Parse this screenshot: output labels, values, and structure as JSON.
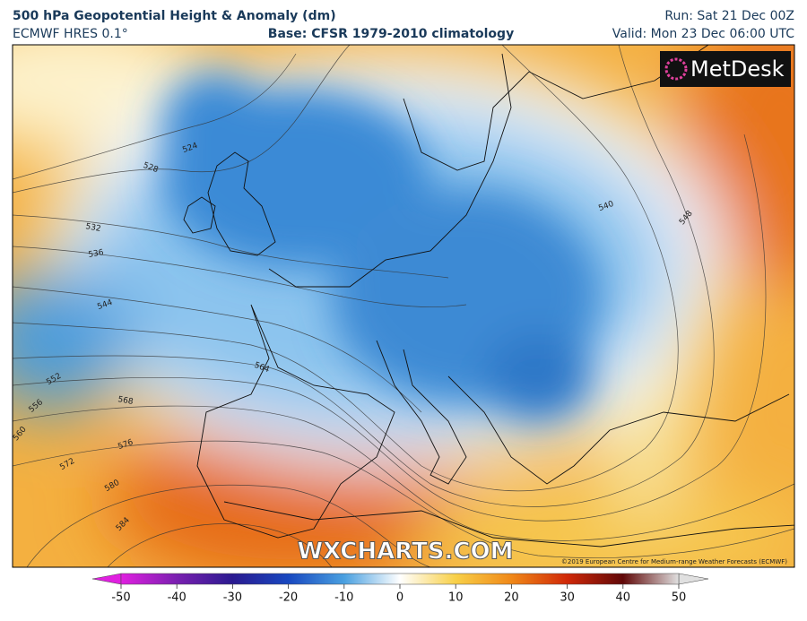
{
  "header": {
    "title": "500 hPa Geopotential Height & Anomaly (dm)",
    "model": "ECMWF HRES 0.1°",
    "base": "Base: CFSR 1979-2010 climatology",
    "run": "Run: Sat 21 Dec 00Z",
    "valid": "Valid: Mon 23 Dec 06:00 UTC"
  },
  "logo": "MetDesk",
  "watermark": "WXCHARTS.COM",
  "copyright": "©2019 European Centre for Medium-range Weather Forecasts (ECMWF)",
  "contour_labels": [
    524,
    528,
    532,
    536,
    540,
    544,
    548,
    552,
    556,
    560,
    564,
    568,
    572,
    576,
    580,
    584
  ],
  "colorbar": {
    "range": [
      -50,
      50
    ],
    "ticks": [
      -50,
      -40,
      -30,
      -20,
      -10,
      0,
      10,
      20,
      30,
      40,
      50
    ]
  }
}
